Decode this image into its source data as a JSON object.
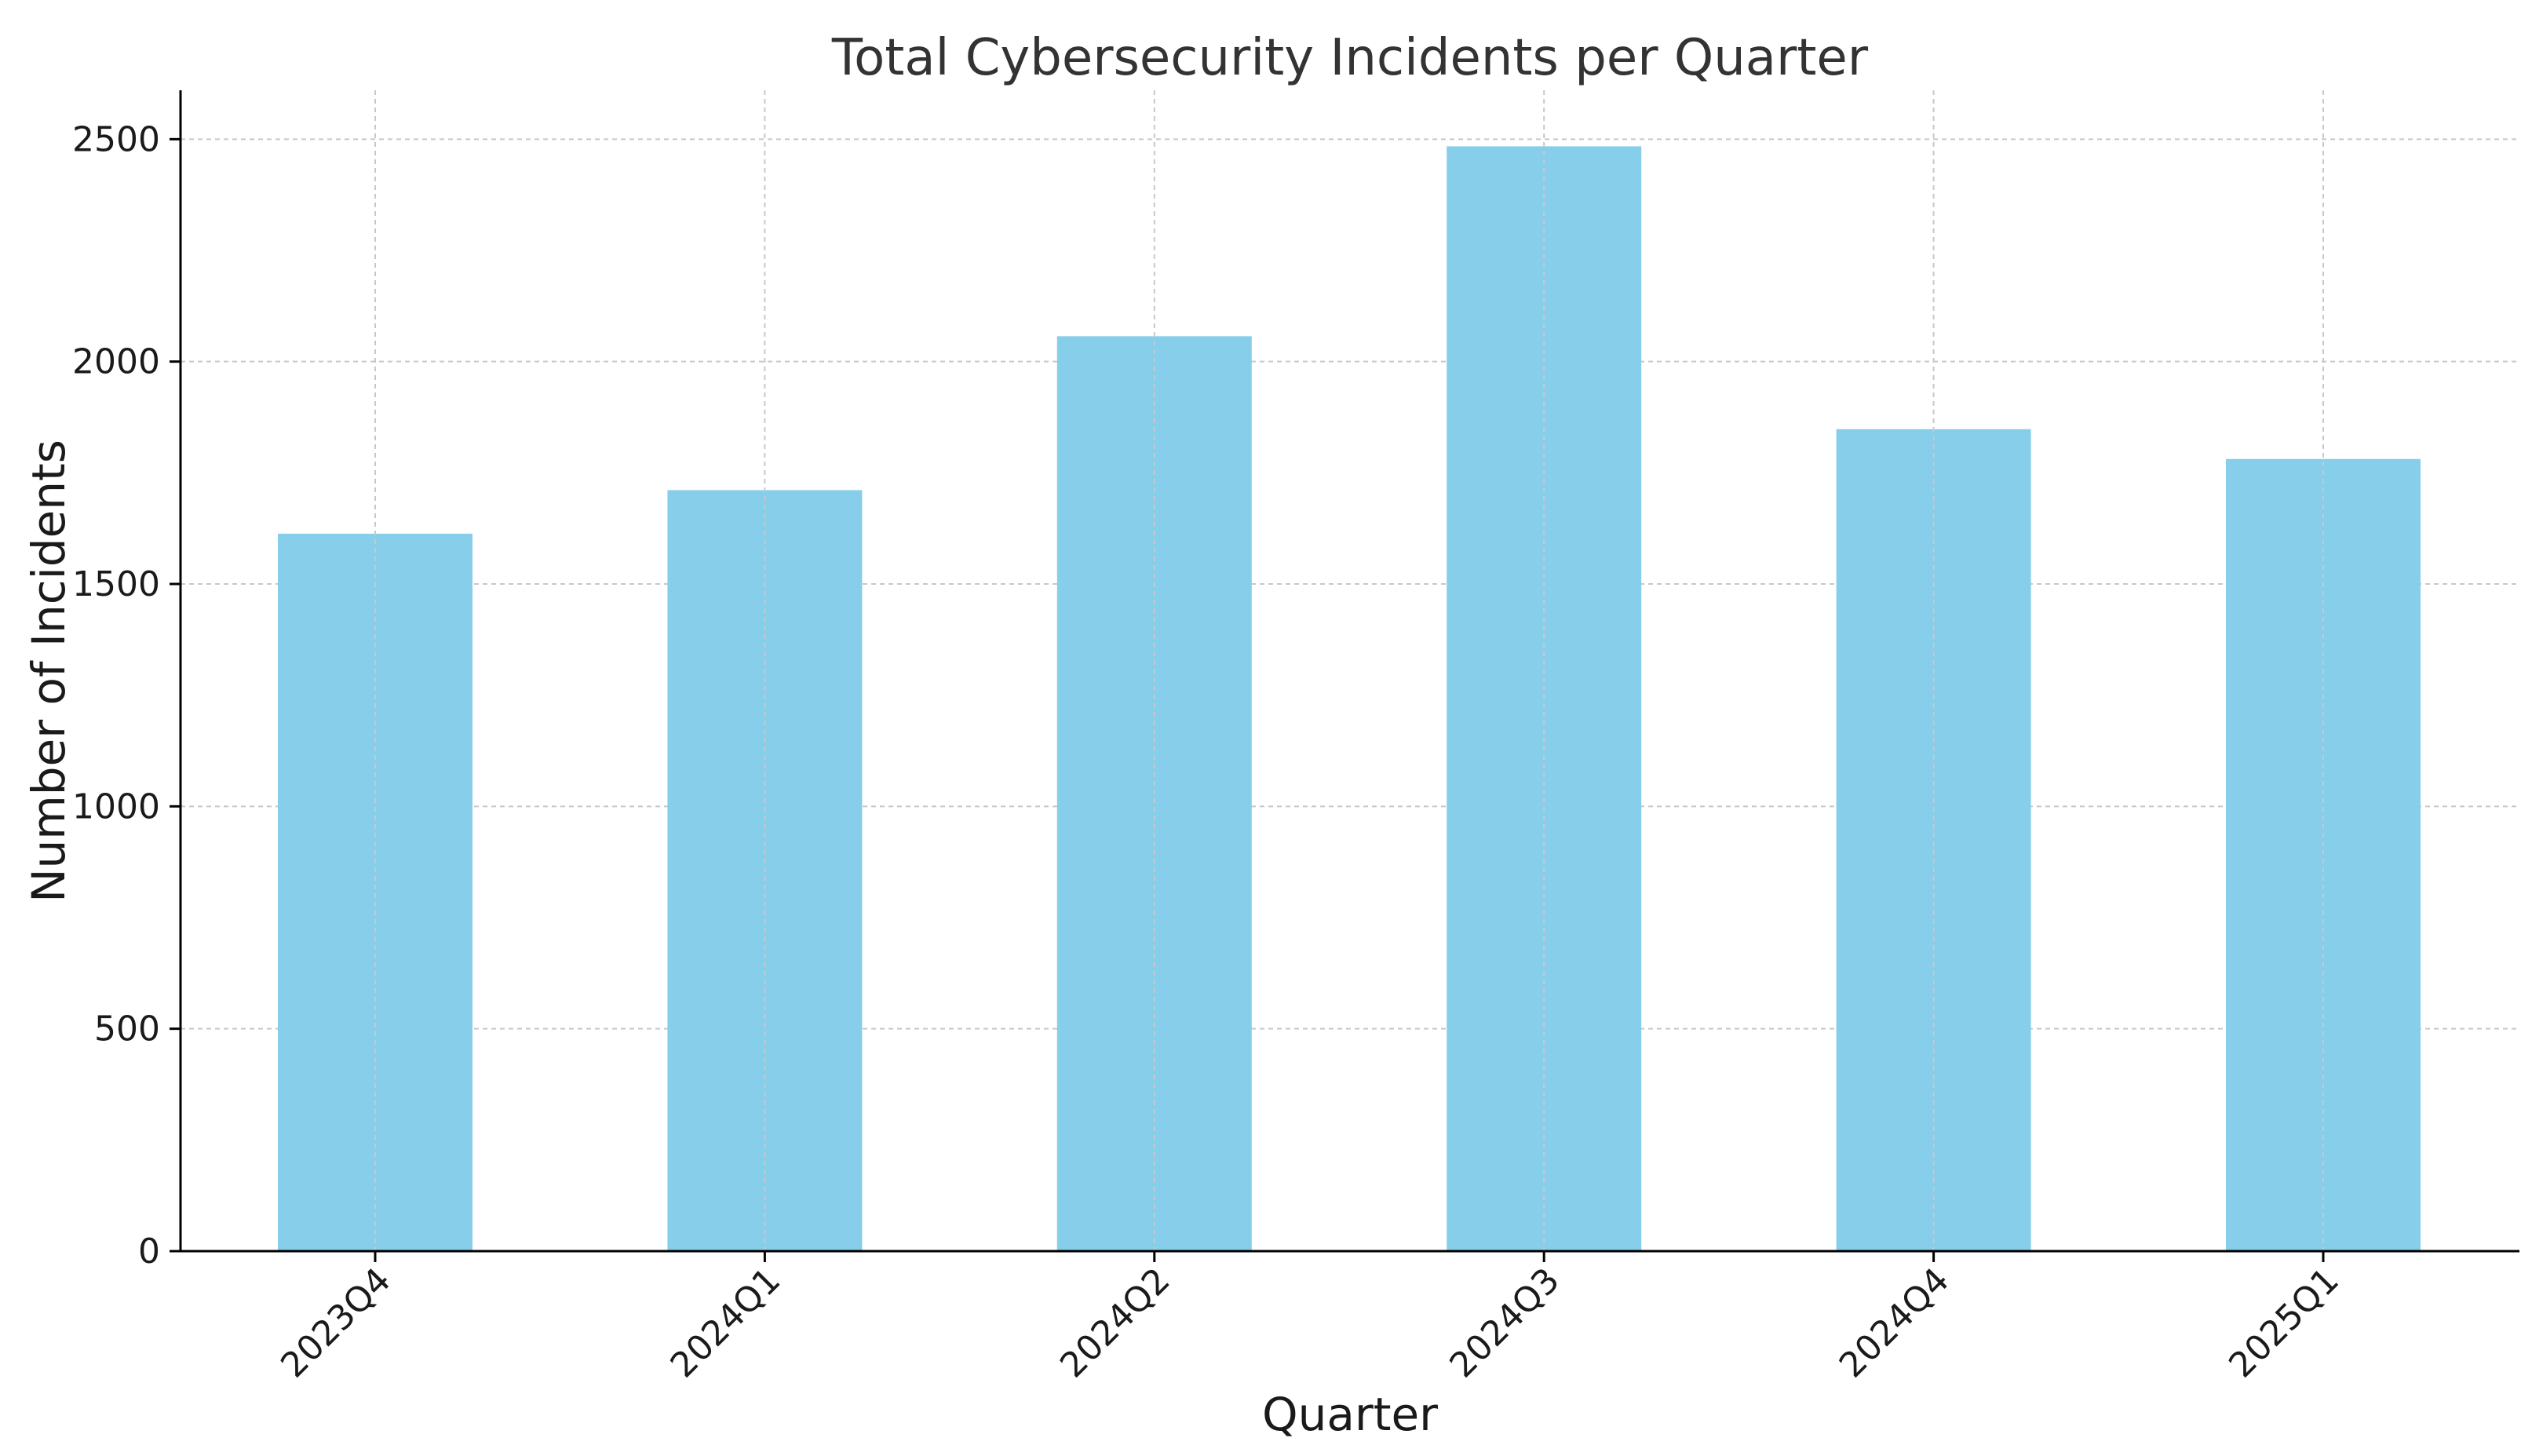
{
  "chart_data": {
    "type": "bar",
    "title": "Total Cybersecurity Incidents per Quarter",
    "xlabel": "Quarter",
    "ylabel": "Number of Incidents",
    "categories": [
      "2023Q4",
      "2024Q1",
      "2024Q2",
      "2024Q3",
      "2024Q4",
      "2025Q1"
    ],
    "values": [
      1613,
      1711,
      2057,
      2484,
      1848,
      1781
    ],
    "ylim": [
      0,
      2610
    ],
    "yticks": [
      0,
      500,
      1000,
      1500,
      2000,
      2500
    ],
    "grid": true,
    "bar_color": "#87CEEB",
    "grid_color": "#c8c8c8",
    "axis_color": "#000000",
    "xtick_rotation_deg": 45
  }
}
